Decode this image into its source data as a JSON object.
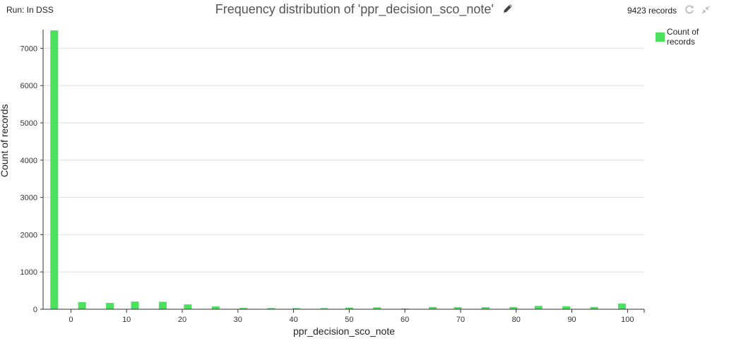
{
  "header": {
    "run_label": "Run: In DSS",
    "title": "Frequency distribution of 'ppr_decision_sco_note'",
    "records": "9423 records"
  },
  "icons": {
    "edit": "pencil-icon",
    "refresh": "refresh-icon",
    "collapse": "collapse-icon"
  },
  "colors": {
    "bar": "#4ce05f",
    "grid": "#dddddd",
    "axis": "#333333"
  },
  "chart_data": {
    "type": "bar",
    "title": "",
    "xlabel": "ppr_decision_sco_note",
    "ylabel": "Count of records",
    "legend": {
      "position": "top-right",
      "entries": [
        "Count of records"
      ]
    },
    "grid": true,
    "xlim": [
      -5,
      103
    ],
    "ylim": [
      0,
      7500
    ],
    "x_ticks": [
      0,
      10,
      20,
      30,
      40,
      50,
      60,
      70,
      80,
      90,
      100
    ],
    "y_ticks": [
      0,
      1000,
      2000,
      3000,
      4000,
      5000,
      6000,
      7000
    ],
    "series": [
      {
        "name": "Count of records",
        "x": [
          -3,
          2,
          7,
          11.5,
          16.5,
          21,
          26,
          31,
          36,
          40.5,
          45.5,
          50,
          55,
          60,
          65,
          69.5,
          74.5,
          79.5,
          84,
          89,
          94,
          99
        ],
        "values": [
          7480,
          190,
          170,
          205,
          200,
          130,
          75,
          35,
          30,
          30,
          30,
          45,
          50,
          20,
          60,
          55,
          55,
          60,
          90,
          80,
          60,
          150
        ]
      }
    ]
  }
}
